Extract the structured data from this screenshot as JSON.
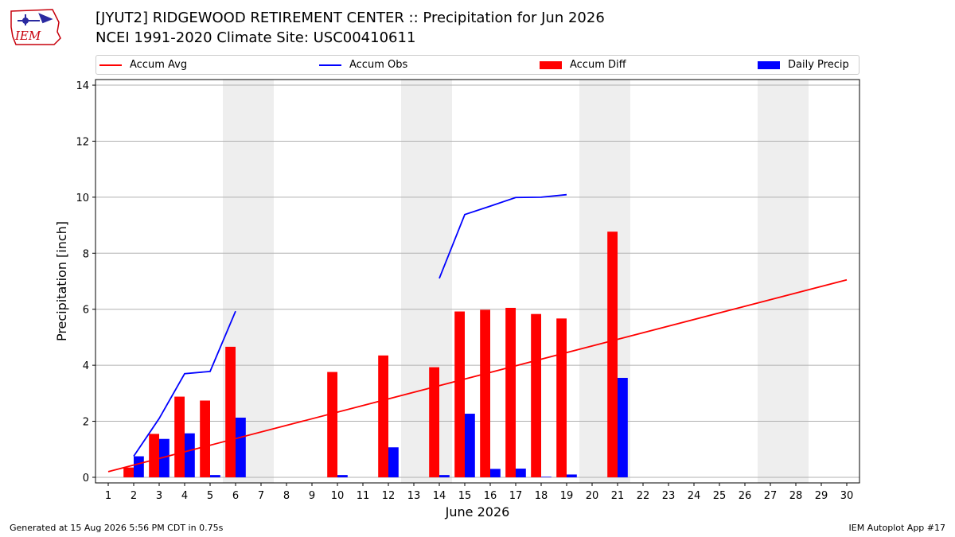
{
  "header": {
    "title_line1": "[JYUT2] RIDGEWOOD RETIREMENT CENTER :: Precipitation for Jun 2026",
    "title_line2": "NCEI 1991-2020 Climate Site: USC00410611",
    "logo_text": "IEM"
  },
  "footer": {
    "generated": "Generated at 15 Aug 2026 5:56 PM CDT in 0.75s",
    "app": "IEM Autoplot App #17"
  },
  "colors": {
    "accum_avg": "#ff0000",
    "accum_obs": "#0000ff",
    "accum_diff": "#ff0000",
    "daily_precip": "#0000ff",
    "weekend_shade": "#eeeeee",
    "grid": "#b0b0b0"
  },
  "chart_data": {
    "type": "bar",
    "xlabel": "June 2026",
    "ylabel": "Precipitation [inch]",
    "xlim": [
      0.5,
      30.5
    ],
    "ylim": [
      -0.2,
      14.2
    ],
    "yticks": [
      0,
      2,
      4,
      6,
      8,
      10,
      12,
      14
    ],
    "x": [
      1,
      2,
      3,
      4,
      5,
      6,
      7,
      8,
      9,
      10,
      11,
      12,
      13,
      14,
      15,
      16,
      17,
      18,
      19,
      20,
      21,
      22,
      23,
      24,
      25,
      26,
      27,
      28,
      29,
      30
    ],
    "grid": "horizontal",
    "legend_position": "top",
    "weekend_shading": [
      [
        6,
        7
      ],
      [
        13,
        14
      ],
      [
        20,
        21
      ],
      [
        27,
        28
      ]
    ],
    "legend": [
      "Accum Avg",
      "Accum Obs",
      "Accum Diff",
      "Daily Precip"
    ],
    "series": [
      {
        "name": "Accum Avg",
        "type": "line",
        "x": [
          1,
          30
        ],
        "values": [
          0.2,
          7.05
        ]
      },
      {
        "name": "Accum Obs",
        "type": "line",
        "segments": [
          {
            "x": [
              2,
              3,
              4,
              5,
              6
            ],
            "values": [
              0.75,
              2.1,
              3.7,
              3.78,
              5.93
            ]
          },
          {
            "x": [
              14,
              15,
              16,
              17,
              18,
              19
            ],
            "values": [
              7.1,
              9.38,
              9.68,
              9.99,
              10.0,
              10.09
            ]
          }
        ]
      },
      {
        "name": "Accum Diff",
        "type": "bar",
        "x": [
          2,
          3,
          4,
          5,
          6,
          10,
          12,
          14,
          15,
          16,
          17,
          18,
          19,
          21
        ],
        "values": [
          0.35,
          1.55,
          2.88,
          2.74,
          4.66,
          3.76,
          4.35,
          3.93,
          5.92,
          5.98,
          6.05,
          5.83,
          5.67,
          8.77
        ]
      },
      {
        "name": "Daily Precip",
        "type": "bar",
        "x": [
          2,
          3,
          4,
          5,
          6,
          10,
          12,
          14,
          15,
          16,
          17,
          18,
          19,
          21
        ],
        "values": [
          0.75,
          1.37,
          1.57,
          0.08,
          2.13,
          0.08,
          1.07,
          0.08,
          2.27,
          0.3,
          0.31,
          0.02,
          0.1,
          3.55
        ]
      }
    ]
  }
}
